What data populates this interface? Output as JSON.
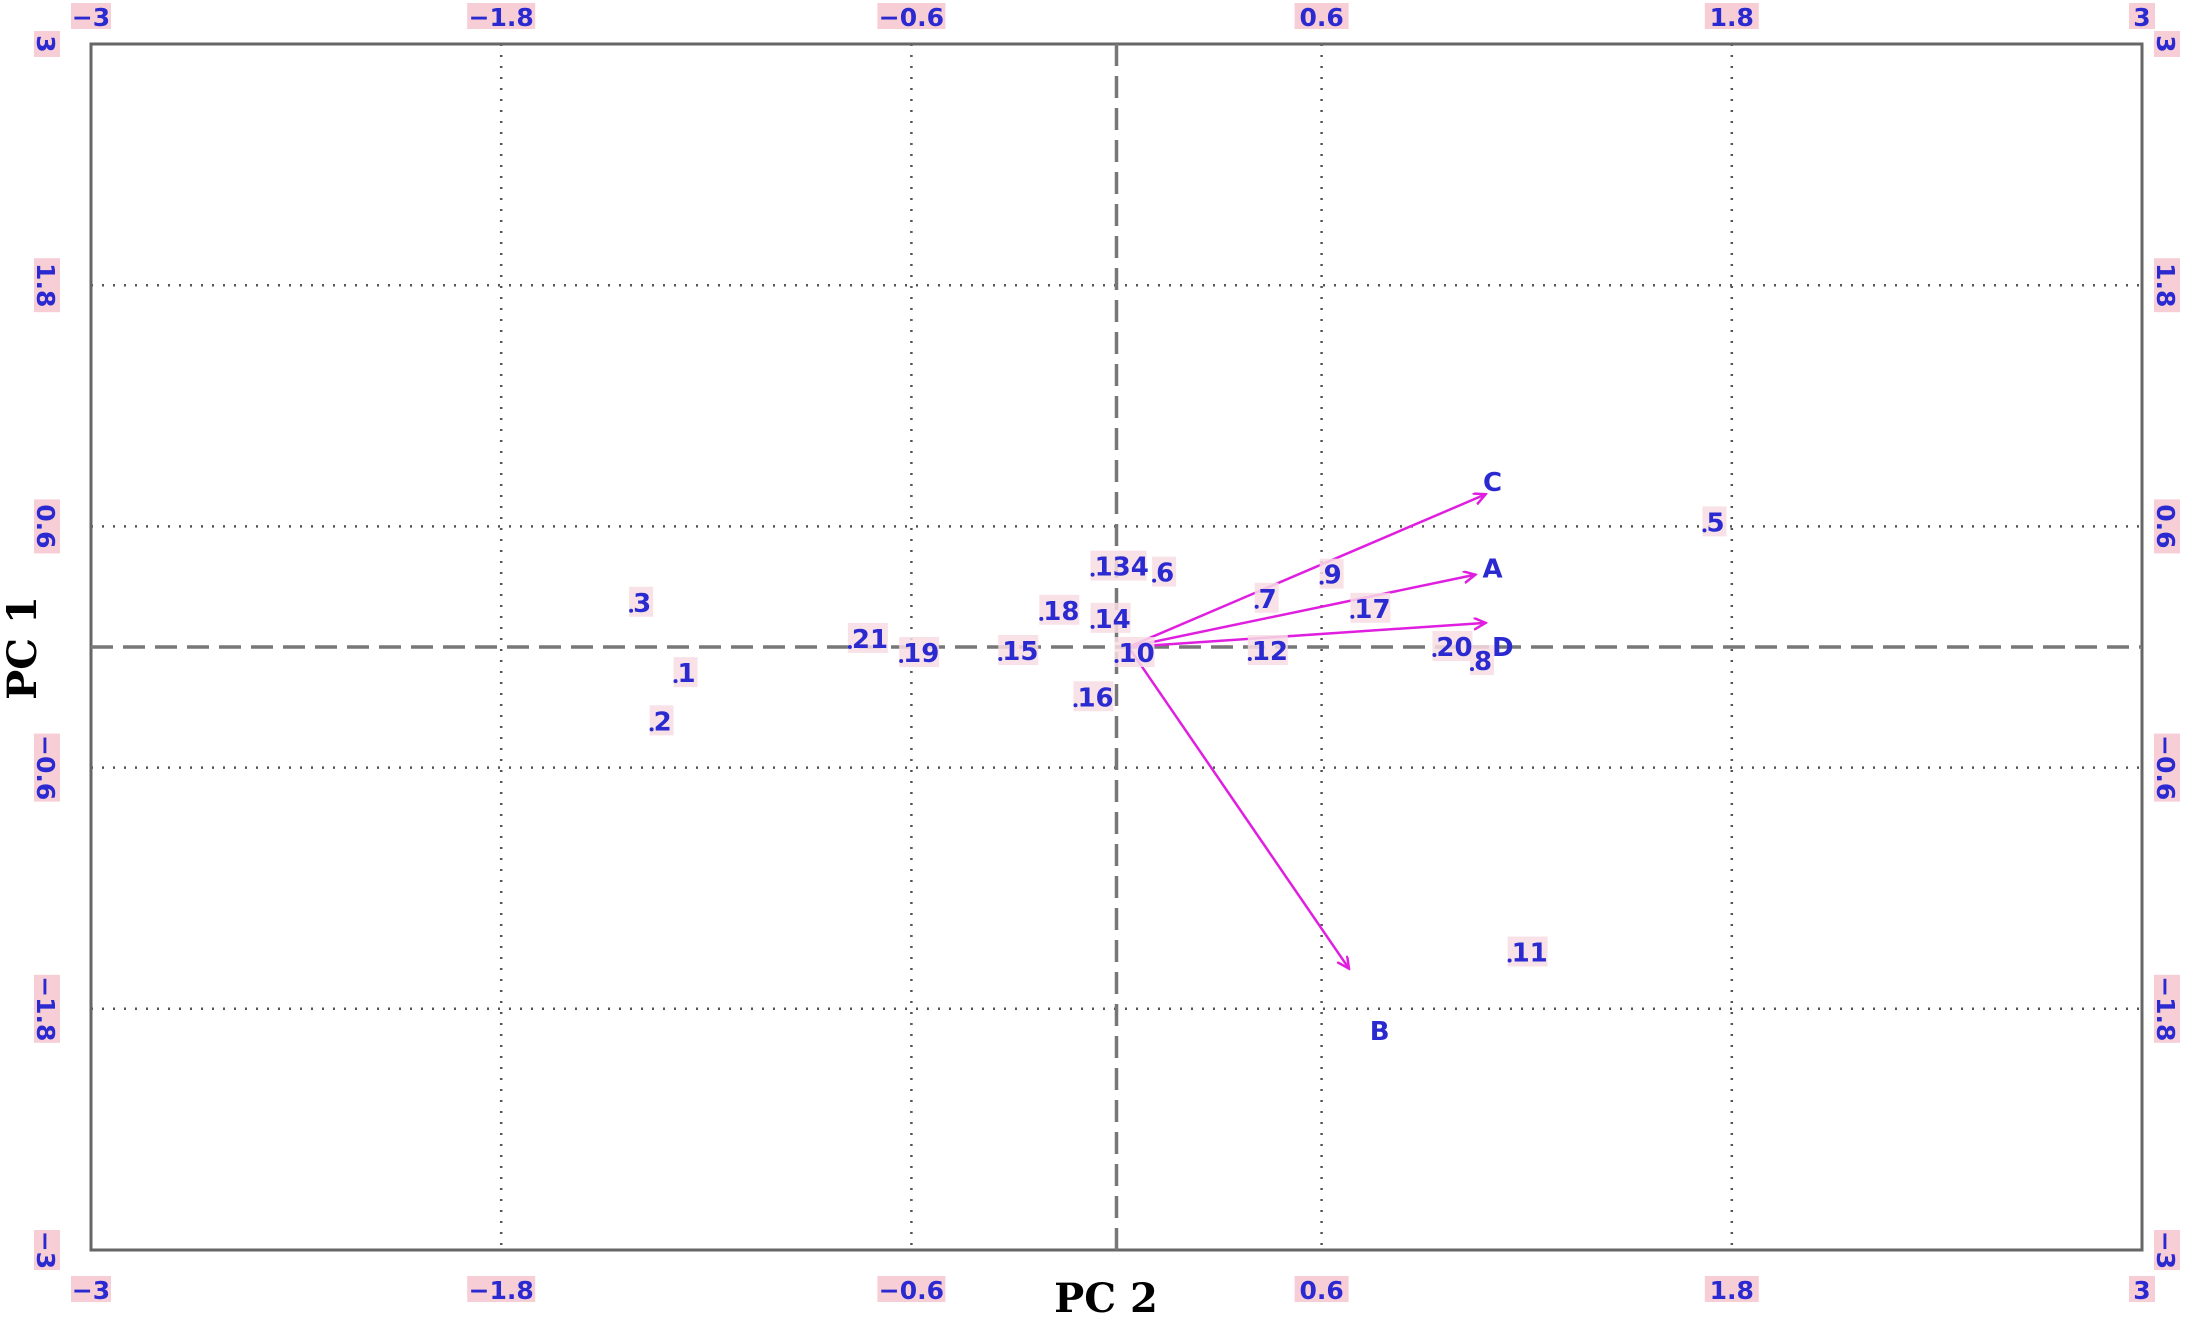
{
  "chart_data": {
    "type": "scatter",
    "subtype": "biplot",
    "xlabel": "PC 2",
    "ylabel": "PC 1",
    "xlim": [
      -3,
      3
    ],
    "ylim": [
      -3,
      3
    ],
    "xticks": [
      "-3",
      "-1.8",
      "-0.6",
      "0.6",
      "1.8",
      "3"
    ],
    "yticks": [
      "-3",
      "-1.8",
      "-0.6",
      "0.6",
      "1.8",
      "3"
    ],
    "tick_values": [
      -3,
      -1.8,
      -0.6,
      0.6,
      1.8,
      3
    ],
    "grid": true,
    "colors": {
      "points": "#2a2ad0",
      "vectors": "#e01ee0",
      "tick_bg": "#f7cdd6"
    },
    "points": [
      {
        "label": "1",
        "x": -1.29,
        "y": -0.13
      },
      {
        "label": "2",
        "x": -1.36,
        "y": -0.37
      },
      {
        "label": "3",
        "x": -1.42,
        "y": 0.22
      },
      {
        "label": "5",
        "x": 1.72,
        "y": 0.62
      },
      {
        "label": "6",
        "x": 0.11,
        "y": 0.37
      },
      {
        "label": "7",
        "x": 0.41,
        "y": 0.24
      },
      {
        "label": "8",
        "x": 1.04,
        "y": -0.07
      },
      {
        "label": "9",
        "x": 0.6,
        "y": 0.36
      },
      {
        "label": "10",
        "x": 0.0,
        "y": -0.03
      },
      {
        "label": "11",
        "x": 1.15,
        "y": -1.52
      },
      {
        "label": "12",
        "x": 0.39,
        "y": -0.02
      },
      {
        "label": "134",
        "x": -0.07,
        "y": 0.4
      },
      {
        "label": "14",
        "x": -0.07,
        "y": 0.14
      },
      {
        "label": "15",
        "x": -0.34,
        "y": -0.02
      },
      {
        "label": "16",
        "x": -0.12,
        "y": -0.25
      },
      {
        "label": "17",
        "x": 0.69,
        "y": 0.19
      },
      {
        "label": "18",
        "x": -0.22,
        "y": 0.18
      },
      {
        "label": "19",
        "x": -0.63,
        "y": -0.03
      },
      {
        "label": "20",
        "x": 0.93,
        "y": 0.0
      },
      {
        "label": "21",
        "x": -0.78,
        "y": 0.04
      }
    ],
    "vectors": [
      {
        "label": "A",
        "x": 1.05,
        "y": 0.36
      },
      {
        "label": "B",
        "x": 0.68,
        "y": -1.6
      },
      {
        "label": "C",
        "x": 1.08,
        "y": 0.76
      },
      {
        "label": "D",
        "x": 1.08,
        "y": 0.12
      }
    ],
    "vector_label_positions": [
      {
        "label": "A",
        "x": 1.1,
        "y": 0.39
      },
      {
        "label": "B",
        "x": 0.77,
        "y": -1.91
      },
      {
        "label": "C",
        "x": 1.1,
        "y": 0.82
      },
      {
        "label": "D",
        "x": 1.13,
        "y": 0.0
      }
    ]
  }
}
